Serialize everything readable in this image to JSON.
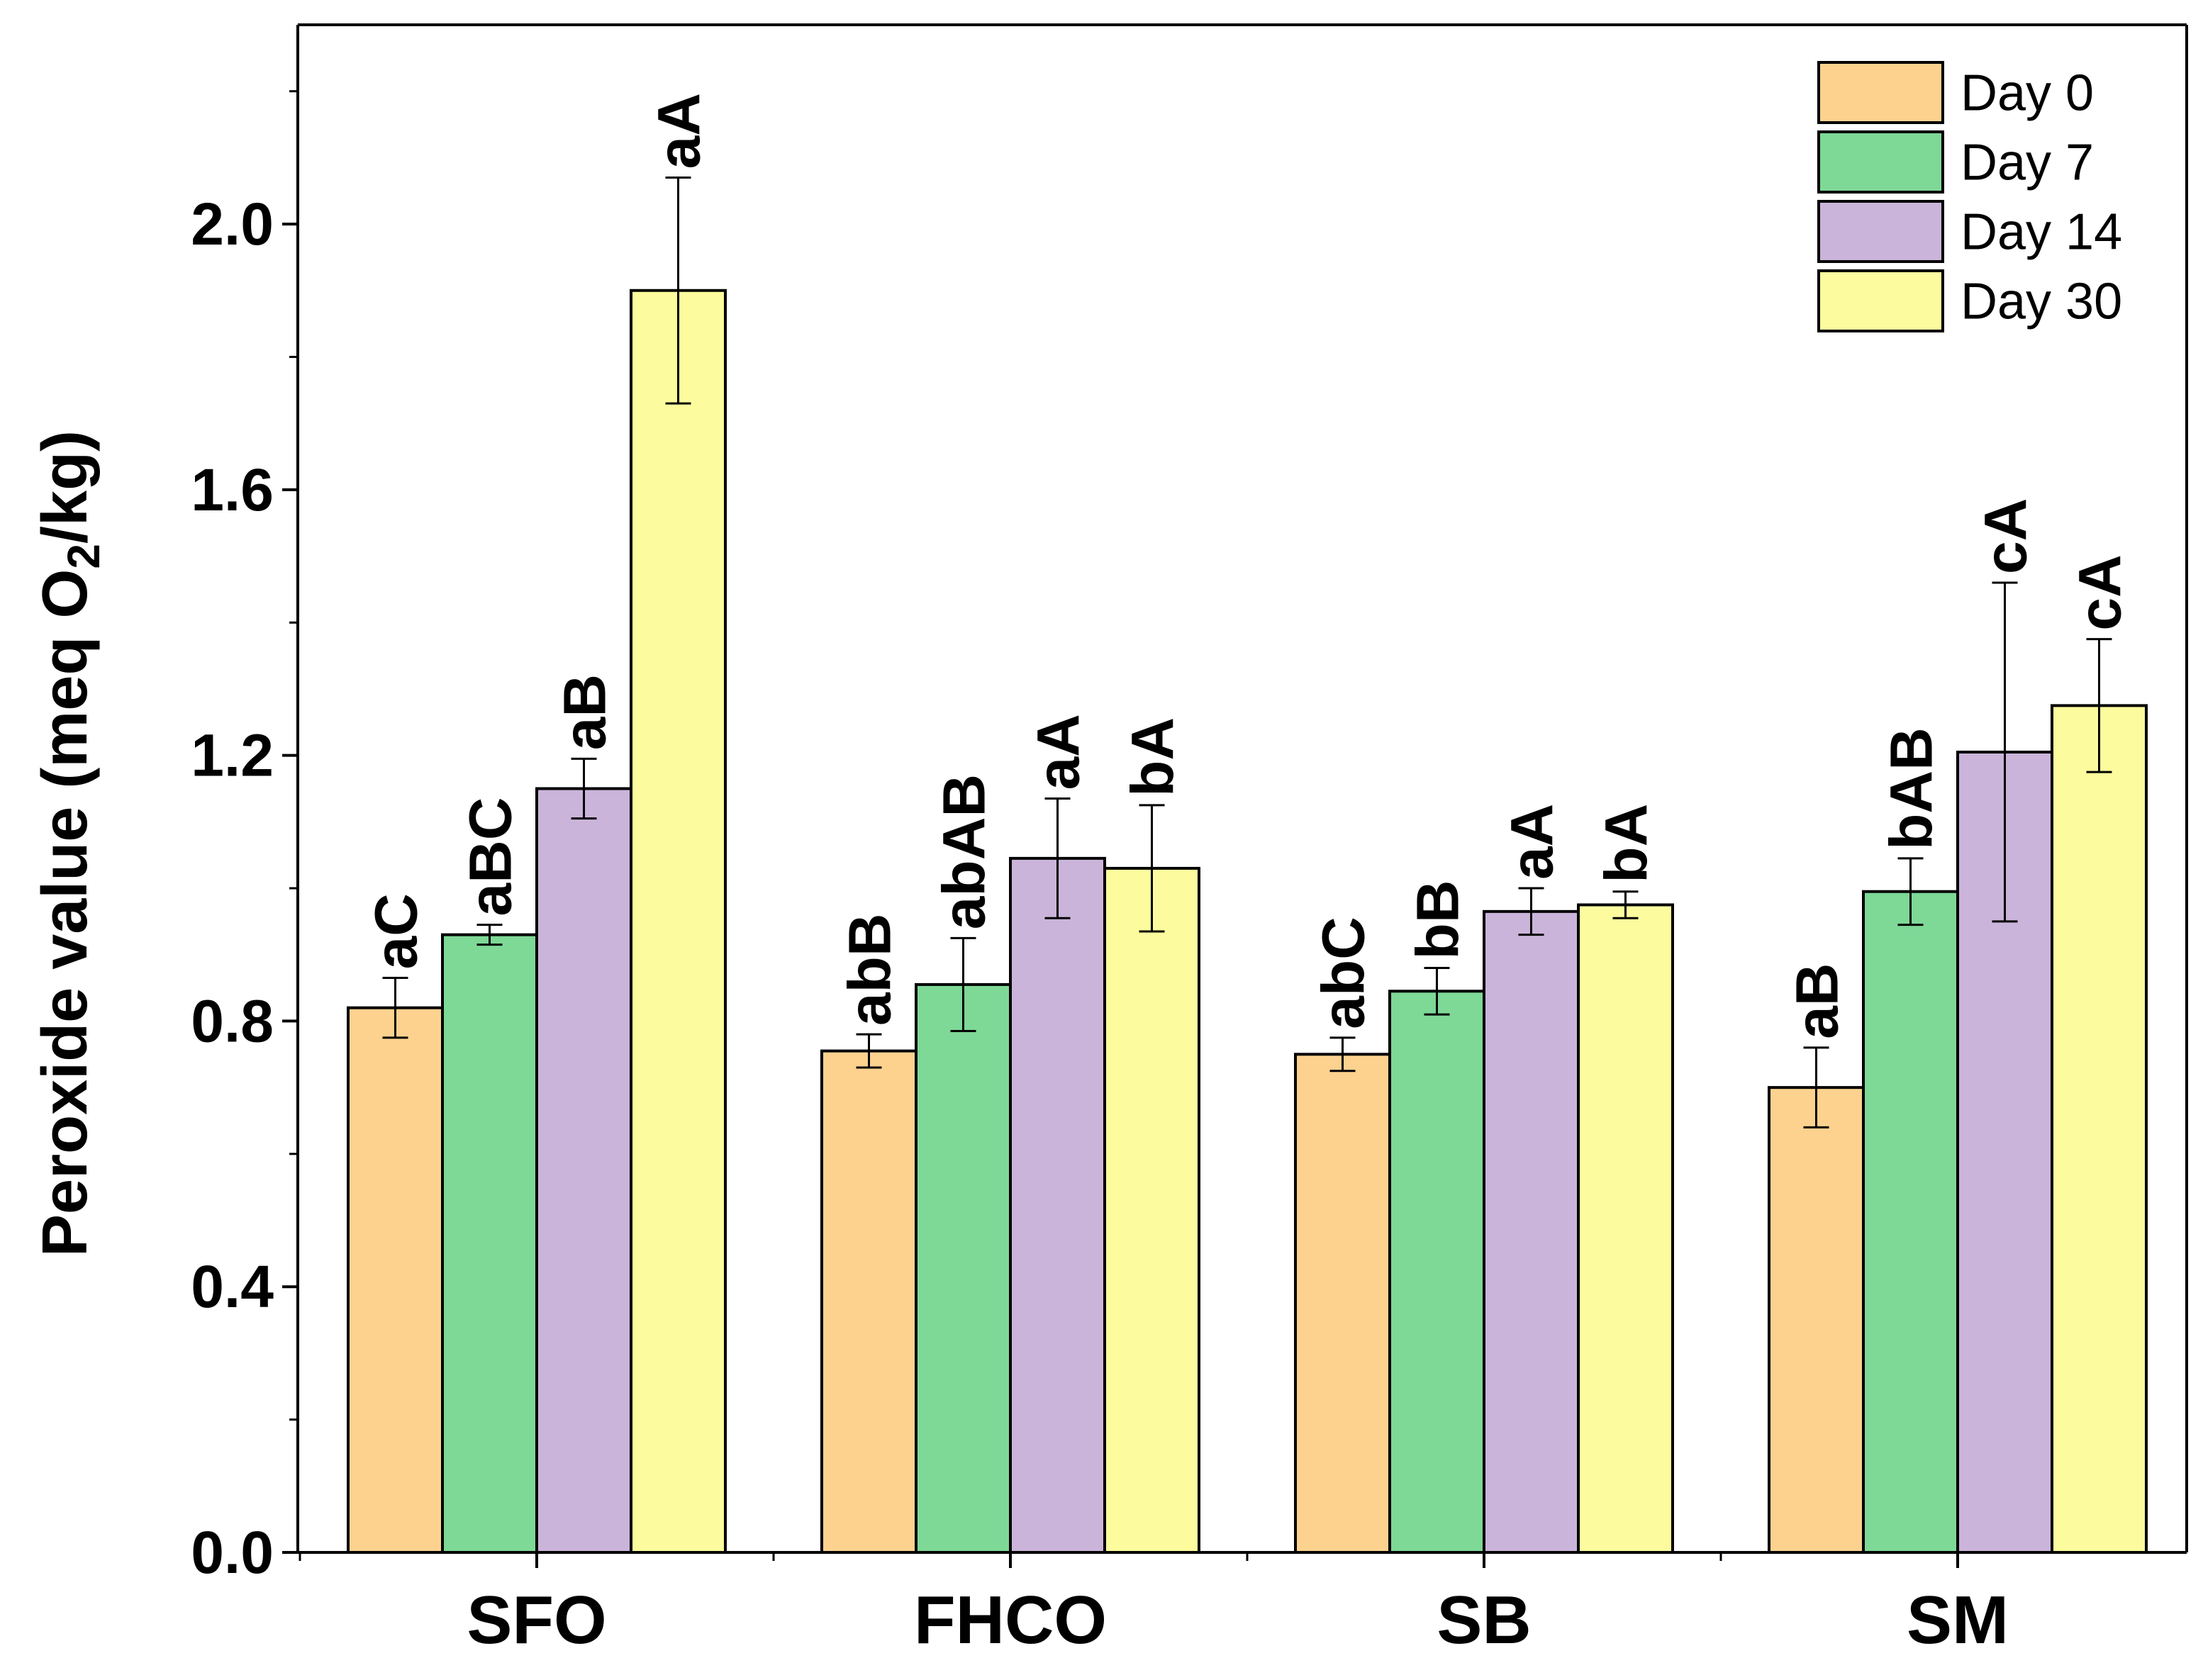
{
  "chart_data": {
    "type": "bar",
    "title": "",
    "xlabel": "",
    "ylabel": {
      "prefix": "Peroxide value (meq O",
      "subscript": "2",
      "suffix": "/kg)"
    },
    "ylim": [
      0,
      2.3
    ],
    "yticks": [
      "0.0",
      "0.4",
      "0.8",
      "1.2",
      "1.6",
      "2.0"
    ],
    "categories": [
      "SFO",
      "FHCO",
      "SB",
      "SM"
    ],
    "legend_position": "top-right",
    "series": [
      {
        "name": "Day 0",
        "color": "#FDD28F",
        "values": [
          0.82,
          0.755,
          0.75,
          0.7
        ],
        "errors": [
          0.045,
          0.025,
          0.025,
          0.06
        ],
        "labels": [
          "aC",
          "abB",
          "abC",
          "aB"
        ]
      },
      {
        "name": "Day 7",
        "color": "#7ED896",
        "values": [
          0.93,
          0.855,
          0.845,
          0.995
        ],
        "errors": [
          0.015,
          0.07,
          0.035,
          0.05
        ],
        "labels": [
          "aBC",
          "abAB",
          "bB",
          "bAB"
        ]
      },
      {
        "name": "Day 14",
        "color": "#CBB4DA",
        "values": [
          1.15,
          1.045,
          0.965,
          1.205
        ],
        "errors": [
          0.045,
          0.09,
          0.035,
          0.255
        ],
        "labels": [
          "aB",
          "aA",
          "aA",
          "cA"
        ]
      },
      {
        "name": "Day 30",
        "color": "#FCFC9E",
        "values": [
          1.9,
          1.03,
          0.975,
          1.275
        ],
        "errors": [
          0.17,
          0.095,
          0.02,
          0.1
        ],
        "labels": [
          "aA",
          "bA",
          "bA",
          "cA"
        ]
      }
    ]
  }
}
